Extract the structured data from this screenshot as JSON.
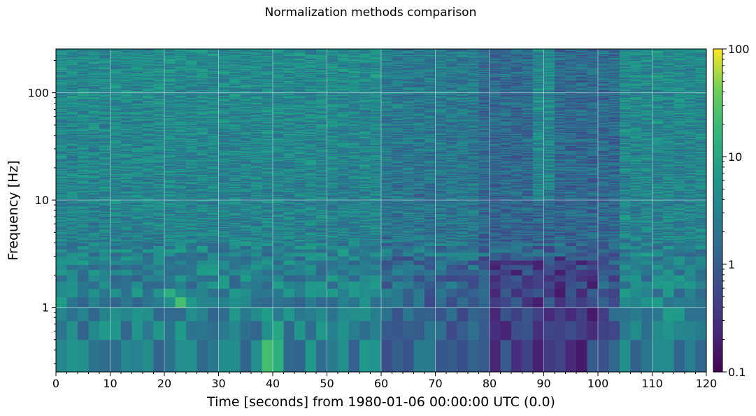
{
  "chart_data": {
    "type": "heatmap",
    "title": "Normalization methods comparison",
    "xlabel": "Time [seconds] from 1980-01-06 00:00:00 UTC (0.0)",
    "ylabel": "Frequency [Hz]",
    "x_ticks": [
      "0",
      "10",
      "20",
      "30",
      "40",
      "50",
      "60",
      "70",
      "80",
      "90",
      "100",
      "110",
      "120"
    ],
    "y_ticks": [
      "1",
      "10",
      "100"
    ],
    "xlim": [
      0,
      120
    ],
    "ylim": [
      0.25,
      256
    ],
    "y_scale": "log",
    "colorbar": {
      "scale": "log",
      "range": [
        0.1,
        100
      ],
      "ticks": [
        "0.1",
        "1",
        "10",
        "100"
      ],
      "colormap": "viridis"
    },
    "grid": true,
    "time_bin_seconds": 2,
    "freq_resolution_hz": 0.25,
    "description": "Spectrogram (normalized ratio) showing values mostly 1–10 at high frequency, ~0.1–5 at low frequencies; elevated band near t=88–92 s above ~10 Hz and darker region 80–100 s at low frequencies.",
    "features": [
      {
        "t_range": [
          88,
          92
        ],
        "f_range": [
          10,
          256
        ],
        "level": "elevated"
      },
      {
        "t_range": [
          80,
          100
        ],
        "f_range": [
          0.25,
          3
        ],
        "level": "low"
      },
      {
        "t_range": [
          20,
          24
        ],
        "f_range": [
          1,
          1.5
        ],
        "level": "high"
      },
      {
        "t_range": [
          38,
          42
        ],
        "f_range": [
          0.25,
          0.75
        ],
        "level": "high"
      }
    ]
  }
}
